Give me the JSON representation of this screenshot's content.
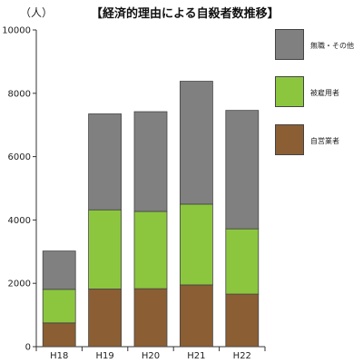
{
  "chart_data": {
    "type": "bar",
    "stacked": true,
    "title": "【経済的理由による自殺者数推移】",
    "ylabel": "（人）",
    "xlabel": "",
    "categories": [
      "H18",
      "H19",
      "H20",
      "H21",
      "H22"
    ],
    "ylim": [
      0,
      10000
    ],
    "yticks": [
      0,
      2000,
      4000,
      6000,
      8000,
      10000
    ],
    "grid": false,
    "legend_position": "right",
    "series": [
      {
        "name": "自営業者",
        "color": "#8b5e34",
        "values": [
          750,
          1820,
          1830,
          1950,
          1660
        ]
      },
      {
        "name": "被雇用者",
        "color": "#8cc63f",
        "values": [
          1060,
          2500,
          2440,
          2550,
          2060
        ]
      },
      {
        "name": "無職・その他",
        "color": "#808080",
        "values": [
          1210,
          3030,
          3150,
          3880,
          3740
        ]
      }
    ]
  }
}
